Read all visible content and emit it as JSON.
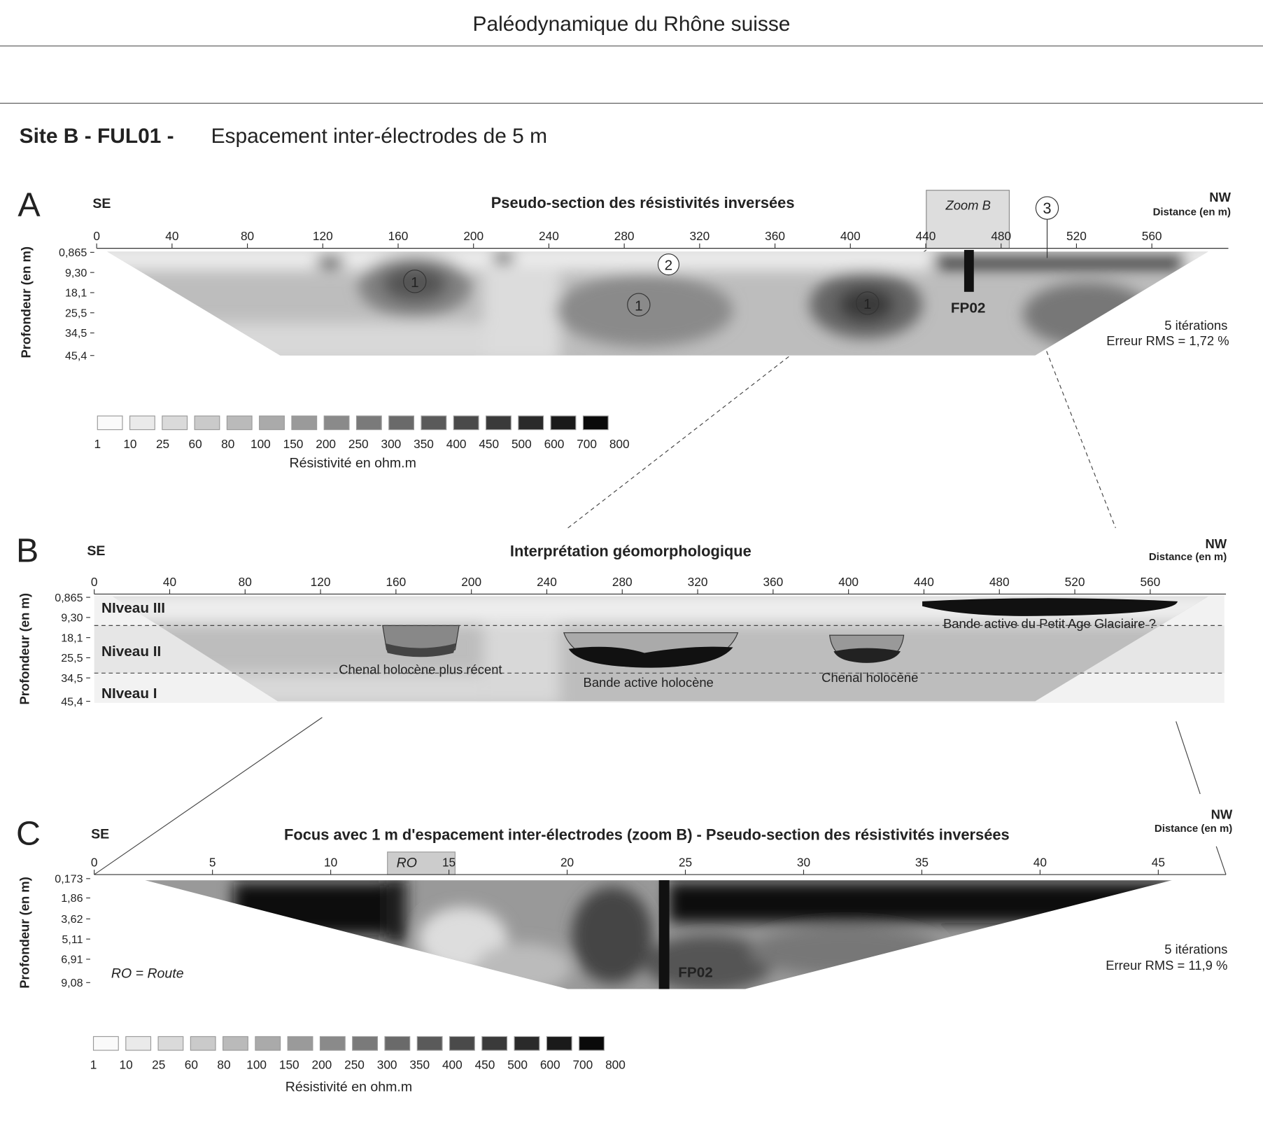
{
  "header": {
    "title": "Paléodynamique du Rhône suisse"
  },
  "figure": {
    "site": "Site B - FUL01 -",
    "subtitle": "Espacement inter-électrodes de 5 m"
  },
  "panels": [
    {
      "letter": "A",
      "left": "SE",
      "right": "NW",
      "distance_label": "Distance (en m)",
      "title": "Pseudo-section des résistivités inversées",
      "depth_label": "Profondeur (en m)",
      "xticks": [
        0,
        40,
        80,
        120,
        160,
        200,
        240,
        280,
        320,
        360,
        400,
        440,
        480,
        520,
        560
      ],
      "depth_ticks": [
        "0,865",
        "9,30",
        "18,1",
        "25,5",
        "34,5",
        "45,4"
      ],
      "annotations": {
        "zoom": "Zoom B",
        "circle_3": "3",
        "circle_2": "2",
        "circle_1a": "1",
        "circle_1b": "1",
        "circle_1c": "1",
        "borehole": "FP02",
        "iterations": "5 itérations",
        "rms": "Erreur RMS = 1,72 %"
      }
    },
    {
      "letter": "B",
      "left": "SE",
      "right": "NW",
      "distance_label": "Distance (en m)",
      "title": "Interprétation géomorphologique",
      "depth_label": "Profondeur (en m)",
      "xticks": [
        0,
        40,
        80,
        120,
        160,
        200,
        240,
        280,
        320,
        360,
        400,
        440,
        480,
        520,
        560
      ],
      "depth_ticks": [
        "0,865",
        "9,30",
        "18,1",
        "25,5",
        "34,5",
        "45,4"
      ],
      "annotations": {
        "level3": "NIveau III",
        "level2": "Niveau II",
        "level1": "NIveau I",
        "channel_recent": "Chenal holocène plus récent",
        "active_band": "Bande active holocène",
        "channel": "Chenal holocène",
        "lia_band": "Bande active du Petit Age Glaciaire ?"
      }
    },
    {
      "letter": "C",
      "left": "SE",
      "right": "NW",
      "distance_label": "Distance (en m)",
      "title": "Focus avec 1 m d'espacement inter-électrodes (zoom B) - Pseudo-section des résistivités inversées",
      "depth_label": "Profondeur (en m)",
      "xticks": [
        0,
        5,
        10,
        15,
        20,
        25,
        30,
        35,
        40,
        45
      ],
      "depth_ticks": [
        "0,173",
        "1,86",
        "3,62",
        "5,11",
        "6,91",
        "9,08"
      ],
      "annotations": {
        "road": "RO",
        "road_legend": "RO = Route",
        "borehole": "FP02",
        "iterations": "5 itérations",
        "rms": "Erreur RMS = 11,9 %"
      }
    }
  ],
  "legends": [
    {
      "values": [
        1,
        10,
        25,
        60,
        80,
        100,
        150,
        200,
        250,
        300,
        350,
        400,
        450,
        500,
        600,
        700,
        800
      ],
      "title": "Résistivité en ohm.m"
    },
    {
      "values": [
        1,
        10,
        25,
        60,
        80,
        100,
        150,
        200,
        250,
        300,
        350,
        400,
        450,
        500,
        600,
        700,
        800
      ],
      "title": "Résistivité en ohm.m"
    }
  ]
}
